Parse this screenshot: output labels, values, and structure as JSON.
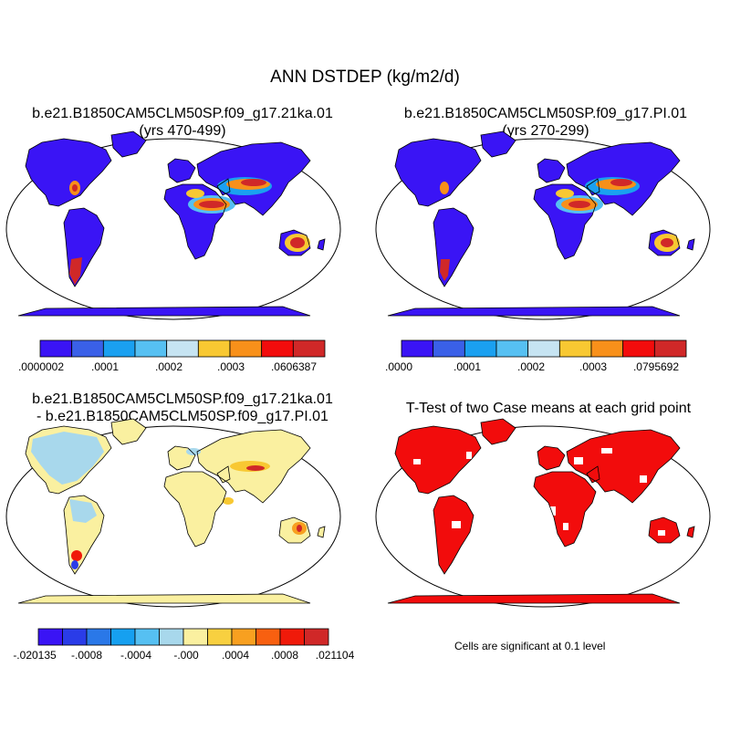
{
  "figure": {
    "title": "ANN DSTDEP (kg/m2/d)"
  },
  "panels": {
    "p1": {
      "title_line1": "b.e21.B1850CAM5CLM50SP.f09_g17.21ka.01",
      "title_line2": "(yrs 470-499)"
    },
    "p2": {
      "title_line1": "b.e21.B1850CAM5CLM50SP.f09_g17.PI.01",
      "title_line2": "(yrs 270-299)"
    },
    "p3": {
      "title_line1": "b.e21.B1850CAM5CLM50SP.f09_g17.21ka.01",
      "title_line2": "- b.e21.B1850CAM5CLM50SP.f09_g17.PI.01"
    },
    "p4": {
      "title_line1": "T-Test of two Case means at each grid point",
      "note": "Cells are significant at 0.1 level"
    }
  },
  "colorbars": {
    "cb1": {
      "colors": [
        "#3a14f5",
        "#3a60e8",
        "#1aa0f0",
        "#56c0f2",
        "#c6e4f2",
        "#f8c832",
        "#f8901a",
        "#f20c0c",
        "#d02828"
      ],
      "labels": [
        ".0000002",
        ".0001",
        ".0002",
        ".0003",
        ".0606387"
      ]
    },
    "cb2": {
      "colors": [
        "#3a14f5",
        "#3a60e8",
        "#1aa0f0",
        "#56c0f2",
        "#c6e4f2",
        "#f8c832",
        "#f8901a",
        "#f20c0c",
        "#d02828"
      ],
      "labels": [
        ".0000",
        ".0001",
        ".0002",
        ".0003",
        ".0795692"
      ]
    },
    "cb3": {
      "colors": [
        "#3a14f5",
        "#2a3ce8",
        "#2a78e8",
        "#16a0f0",
        "#56c0f2",
        "#a8d8ec",
        "#faf0a0",
        "#f8d040",
        "#f8a020",
        "#f86010",
        "#f01a0a",
        "#d02828"
      ],
      "labels": [
        "-.020135",
        "-.0008",
        "-.0004",
        "-.000",
        ".0004",
        ".0008",
        ".021104"
      ]
    }
  },
  "map_colors": {
    "ocean": "#ffffff",
    "dust_low": "#3a14f5",
    "diff_base": "#faf0a0",
    "diff_neg": "#a8d8ec",
    "signif": "#f20c0c"
  }
}
